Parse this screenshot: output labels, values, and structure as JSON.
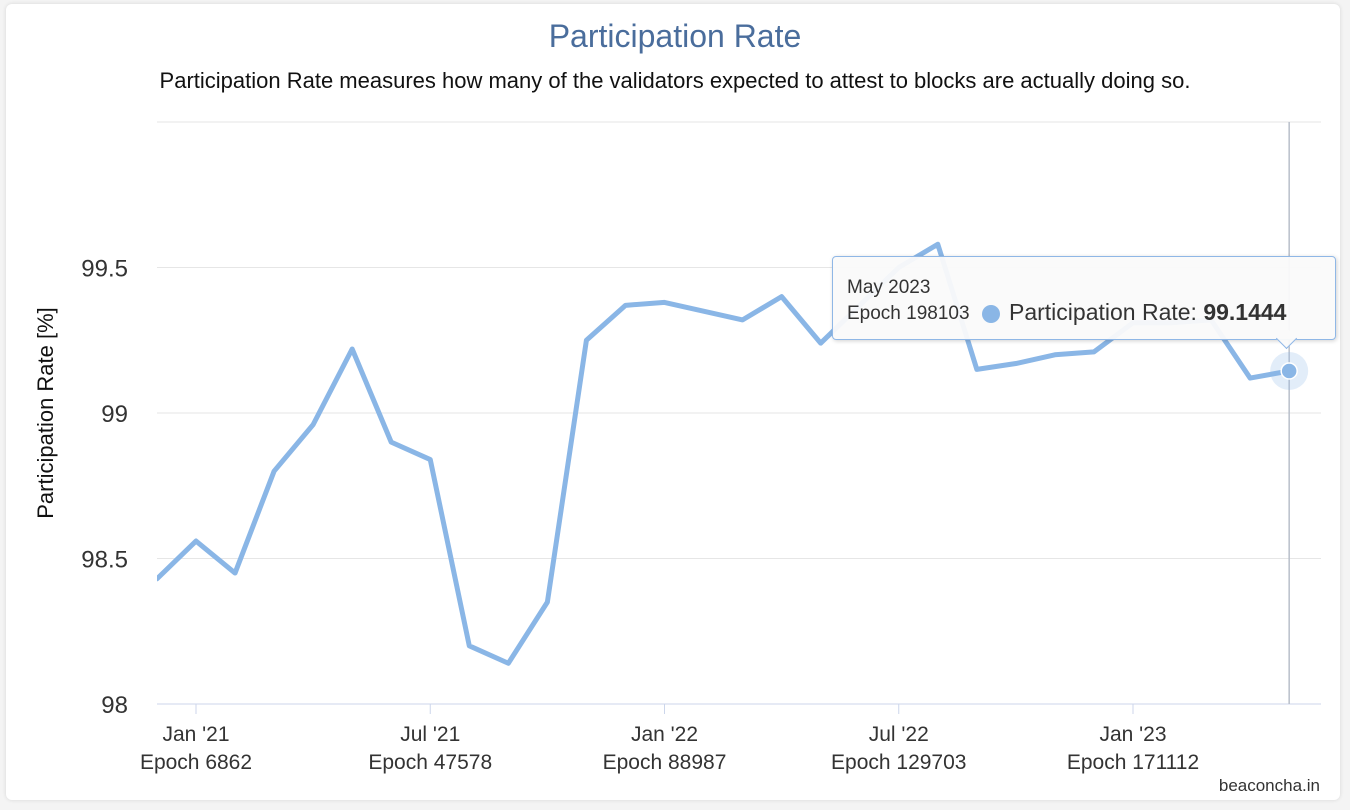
{
  "chart_data": {
    "type": "line",
    "title": "Participation Rate",
    "subtitle": "Participation Rate measures how many of the validators expected to attest to blocks are actually doing so.",
    "ylabel": "Participation Rate [%]",
    "ylim": [
      98,
      100
    ],
    "yticks": [
      "98",
      "98.5",
      "99",
      "99.5"
    ],
    "ytick_values": [
      98,
      98.5,
      99,
      99.5
    ],
    "xticks": [
      {
        "month": "Jan '21",
        "epoch": "Epoch 6862",
        "value": "2021-01"
      },
      {
        "month": "Jul '21",
        "epoch": "Epoch 47578",
        "value": "2021-07"
      },
      {
        "month": "Jan '22",
        "epoch": "Epoch 88987",
        "value": "2022-01"
      },
      {
        "month": "Jul '22",
        "epoch": "Epoch 129703",
        "value": "2022-07"
      },
      {
        "month": "Jan '23",
        "epoch": "Epoch 171112",
        "value": "2023-01"
      }
    ],
    "grid": true,
    "legend": "none",
    "series": [
      {
        "color": "#8ab6e6",
        "x": [
          "2020-12",
          "2021-01",
          "2021-02",
          "2021-03",
          "2021-04",
          "2021-05",
          "2021-06",
          "2021-07",
          "2021-08",
          "2021-09",
          "2021-10",
          "2021-11",
          "2021-12",
          "2022-01",
          "2022-02",
          "2022-03",
          "2022-04",
          "2022-05",
          "2022-06",
          "2022-07",
          "2022-08",
          "2022-09",
          "2022-10",
          "2022-11",
          "2022-12",
          "2023-01",
          "2023-02",
          "2023-03",
          "2023-04",
          "2023-05"
        ],
        "values": [
          98.43,
          98.56,
          98.45,
          98.8,
          98.96,
          99.22,
          98.9,
          98.84,
          98.2,
          98.14,
          98.35,
          99.25,
          99.37,
          99.38,
          99.35,
          99.32,
          99.4,
          99.24,
          99.37,
          99.5,
          99.58,
          99.15,
          99.17,
          99.2,
          99.21,
          99.31,
          99.31,
          99.32,
          99.12,
          99.1444
        ]
      }
    ]
  },
  "tooltip": {
    "date": "May 2023",
    "epoch": "Epoch 198103",
    "series_label": "Participation Rate: ",
    "value": "99.1444"
  },
  "credits": "beaconcha.in"
}
